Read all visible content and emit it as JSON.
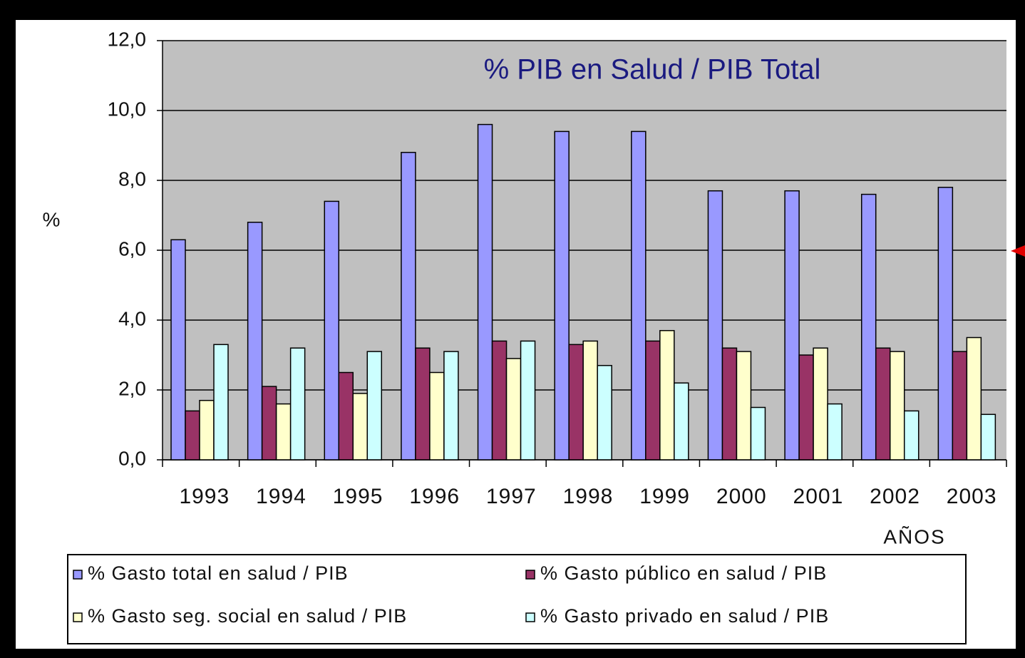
{
  "chart_data": {
    "type": "bar",
    "title": "% PIB en Salud / PIB Total",
    "y_label": "%",
    "x_label": "AÑOS",
    "categories": [
      "1993",
      "1994",
      "1995",
      "1996",
      "1997",
      "1998",
      "1999",
      "2000",
      "2001",
      "2002",
      "2003"
    ],
    "series": [
      {
        "name": "% Gasto total en salud / PIB",
        "color": "#9999ff",
        "values": [
          6.3,
          6.8,
          7.4,
          8.8,
          9.6,
          9.4,
          9.4,
          7.7,
          7.7,
          7.6,
          7.8
        ]
      },
      {
        "name": "% Gasto público en salud / PIB",
        "color": "#993366",
        "values": [
          1.4,
          2.1,
          2.5,
          3.2,
          3.4,
          3.3,
          3.4,
          3.2,
          3.0,
          3.2,
          3.1
        ]
      },
      {
        "name": "% Gasto seg. social en salud / PIB",
        "color": "#ffffcc",
        "values": [
          1.7,
          1.6,
          1.9,
          2.5,
          2.9,
          3.4,
          3.7,
          3.1,
          3.2,
          3.1,
          3.5
        ]
      },
      {
        "name": "% Gasto privado en salud / PIB",
        "color": "#ccffff",
        "values": [
          3.3,
          3.2,
          3.1,
          3.1,
          3.4,
          2.7,
          2.2,
          1.5,
          1.6,
          1.4,
          1.3
        ]
      }
    ],
    "ylim": [
      0,
      12
    ],
    "yticks": [
      {
        "value": 0,
        "label": "0,0"
      },
      {
        "value": 2,
        "label": "2,0"
      },
      {
        "value": 4,
        "label": "4,0"
      },
      {
        "value": 6,
        "label": "6,0"
      },
      {
        "value": 8,
        "label": "8,0"
      },
      {
        "value": 10,
        "label": "10,0"
      },
      {
        "value": 12,
        "label": "12,0"
      }
    ],
    "grid": true,
    "plot_background": "#c0c0c0",
    "title_color": "#1a1a80"
  }
}
